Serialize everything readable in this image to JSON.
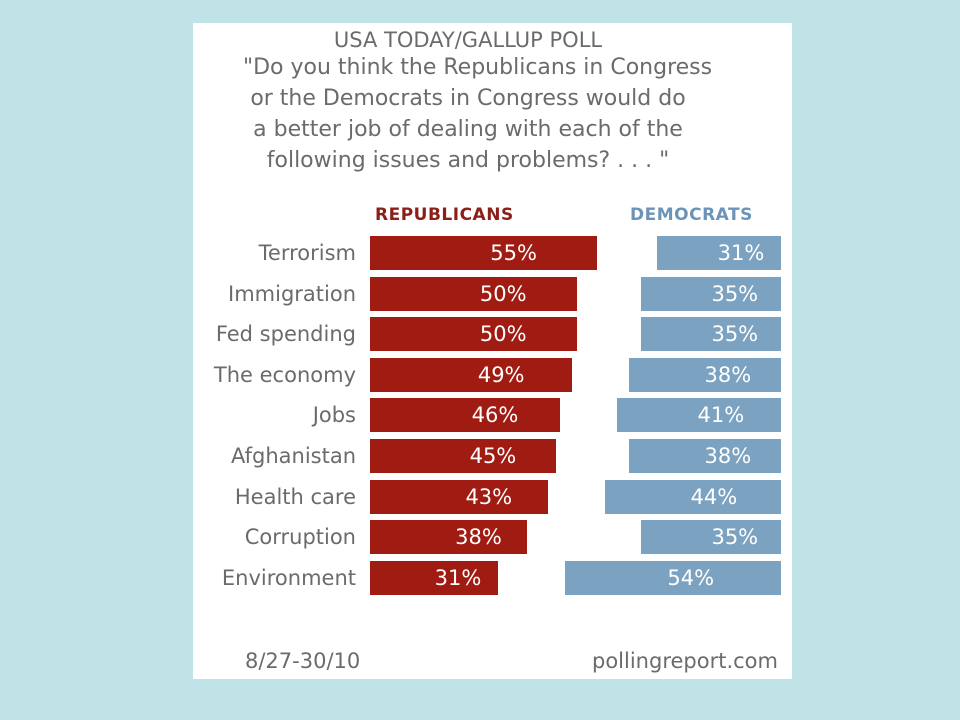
{
  "header": {
    "poll_name": "USA TODAY/GALLUP POLL",
    "question_lines": [
      "\"Do you think the Republicans in Congress",
      "or the Democrats in Congress would do",
      "a better job of dealing with each of the",
      "following issues and problems? . . . \""
    ]
  },
  "footer": {
    "date": "8/27-30/10",
    "source": "pollingreport.com"
  },
  "colors": {
    "republicans": "#a01c12",
    "democrats": "#7ba2c1",
    "background": "#bfe3e7"
  },
  "chart_data": {
    "type": "bar",
    "categories": [
      "Terrorism",
      "Immigration",
      "Fed spending",
      "The economy",
      "Jobs",
      "Afghanistan",
      "Health care",
      "Corruption",
      "Environment"
    ],
    "series": [
      {
        "name": "REPUBLICANS",
        "values": [
          55,
          50,
          50,
          49,
          46,
          45,
          43,
          38,
          31
        ],
        "labels": [
          "55%",
          "50%",
          "50%",
          "49%",
          "46%",
          "45%",
          "43%",
          "38%",
          "31%"
        ]
      },
      {
        "name": "DEMOCRATS",
        "values": [
          31,
          35,
          35,
          38,
          41,
          38,
          44,
          35,
          54
        ],
        "labels": [
          "31%",
          "35%",
          "35%",
          "38%",
          "41%",
          "38%",
          "44%",
          "35%",
          "54%"
        ]
      }
    ],
    "unit": "%",
    "orientation": "horizontal-diverging"
  }
}
